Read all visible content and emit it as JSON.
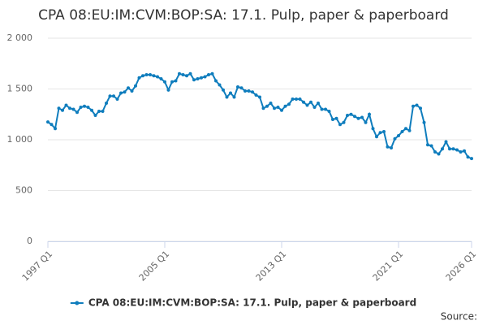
{
  "chart_data": {
    "type": "line",
    "title": "CPA 08:EU:IM:CVM:BOP:SA: 17.1. Pulp, paper & paperboard",
    "categories": [
      "1997 Q1",
      null,
      null,
      null,
      null,
      null,
      null,
      null,
      null,
      null,
      null,
      null,
      null,
      null,
      null,
      null,
      null,
      null,
      null,
      null,
      null,
      null,
      null,
      null,
      null,
      null,
      null,
      null,
      null,
      null,
      null,
      null,
      "2005 Q1",
      null,
      null,
      null,
      null,
      null,
      null,
      null,
      null,
      null,
      null,
      null,
      null,
      null,
      null,
      null,
      null,
      null,
      null,
      null,
      null,
      null,
      null,
      null,
      null,
      null,
      null,
      null,
      null,
      null,
      null,
      null,
      "2013 Q1",
      null,
      null,
      null,
      null,
      null,
      null,
      null,
      null,
      null,
      null,
      null,
      null,
      null,
      null,
      null,
      null,
      null,
      null,
      null,
      null,
      null,
      null,
      null,
      null,
      null,
      null,
      null,
      null,
      null,
      null,
      null,
      "2021 Q1",
      null,
      null,
      null,
      null,
      null,
      null,
      null,
      null,
      null,
      null,
      null,
      null,
      null,
      null,
      null,
      null,
      null,
      null,
      null,
      "2026 Q1"
    ],
    "series": [
      {
        "name": "CPA 08:EU:IM:CVM:BOP:SA: 17.1. Pulp, paper & paperboard",
        "color": "#0f7dbd",
        "values": [
          1175,
          1150,
          1110,
          1310,
          1290,
          1340,
          1310,
          1300,
          1270,
          1320,
          1330,
          1320,
          1290,
          1240,
          1280,
          1280,
          1360,
          1430,
          1430,
          1400,
          1460,
          1470,
          1510,
          1480,
          1530,
          1610,
          1630,
          1640,
          1640,
          1630,
          1620,
          1600,
          1570,
          1490,
          1570,
          1580,
          1650,
          1640,
          1630,
          1650,
          1590,
          1600,
          1610,
          1620,
          1640,
          1650,
          1580,
          1540,
          1490,
          1420,
          1460,
          1420,
          1520,
          1510,
          1480,
          1480,
          1470,
          1440,
          1420,
          1310,
          1330,
          1360,
          1310,
          1320,
          1290,
          1330,
          1350,
          1400,
          1400,
          1400,
          1370,
          1340,
          1370,
          1320,
          1360,
          1300,
          1300,
          1280,
          1200,
          1210,
          1150,
          1170,
          1240,
          1250,
          1230,
          1210,
          1220,
          1170,
          1250,
          1110,
          1030,
          1070,
          1080,
          930,
          920,
          1010,
          1040,
          1080,
          1110,
          1090,
          1330,
          1340,
          1310,
          1170,
          950,
          940,
          880,
          860,
          910,
          980,
          910,
          910,
          900,
          880,
          890,
          830,
          815
        ]
      }
    ],
    "ylim": [
      0,
      2000
    ],
    "yticks": [
      0,
      500,
      {
        "value": 1000,
        "label": "1 000"
      },
      {
        "value": 1500,
        "label": "1 500"
      },
      {
        "value": 2000,
        "label": "2 000"
      }
    ],
    "grid": true,
    "legend": "bottom",
    "source": "Source:"
  }
}
